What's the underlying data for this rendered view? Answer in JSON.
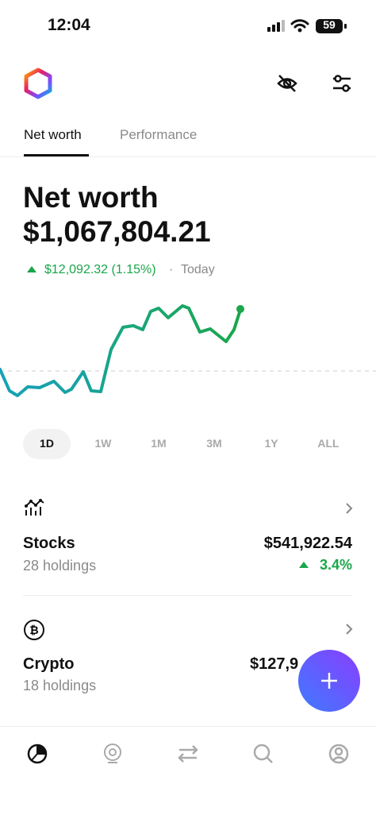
{
  "status_bar": {
    "time": "12:04",
    "battery": "59"
  },
  "tabs": [
    "Net worth",
    "Performance"
  ],
  "summary": {
    "title": "Net worth",
    "value": "$1,067,804.21",
    "change": "$12,092.32 (1.15%)",
    "separator": "·",
    "period": "Today"
  },
  "ranges": [
    "1D",
    "1W",
    "1M",
    "3M",
    "1Y",
    "ALL"
  ],
  "holdings": [
    {
      "name": "Stocks",
      "count": "28 holdings",
      "value": "$541,922.54",
      "change": "3.4%"
    },
    {
      "name": "Crypto",
      "count": "18 holdings",
      "value": "$127,9"
    }
  ]
}
